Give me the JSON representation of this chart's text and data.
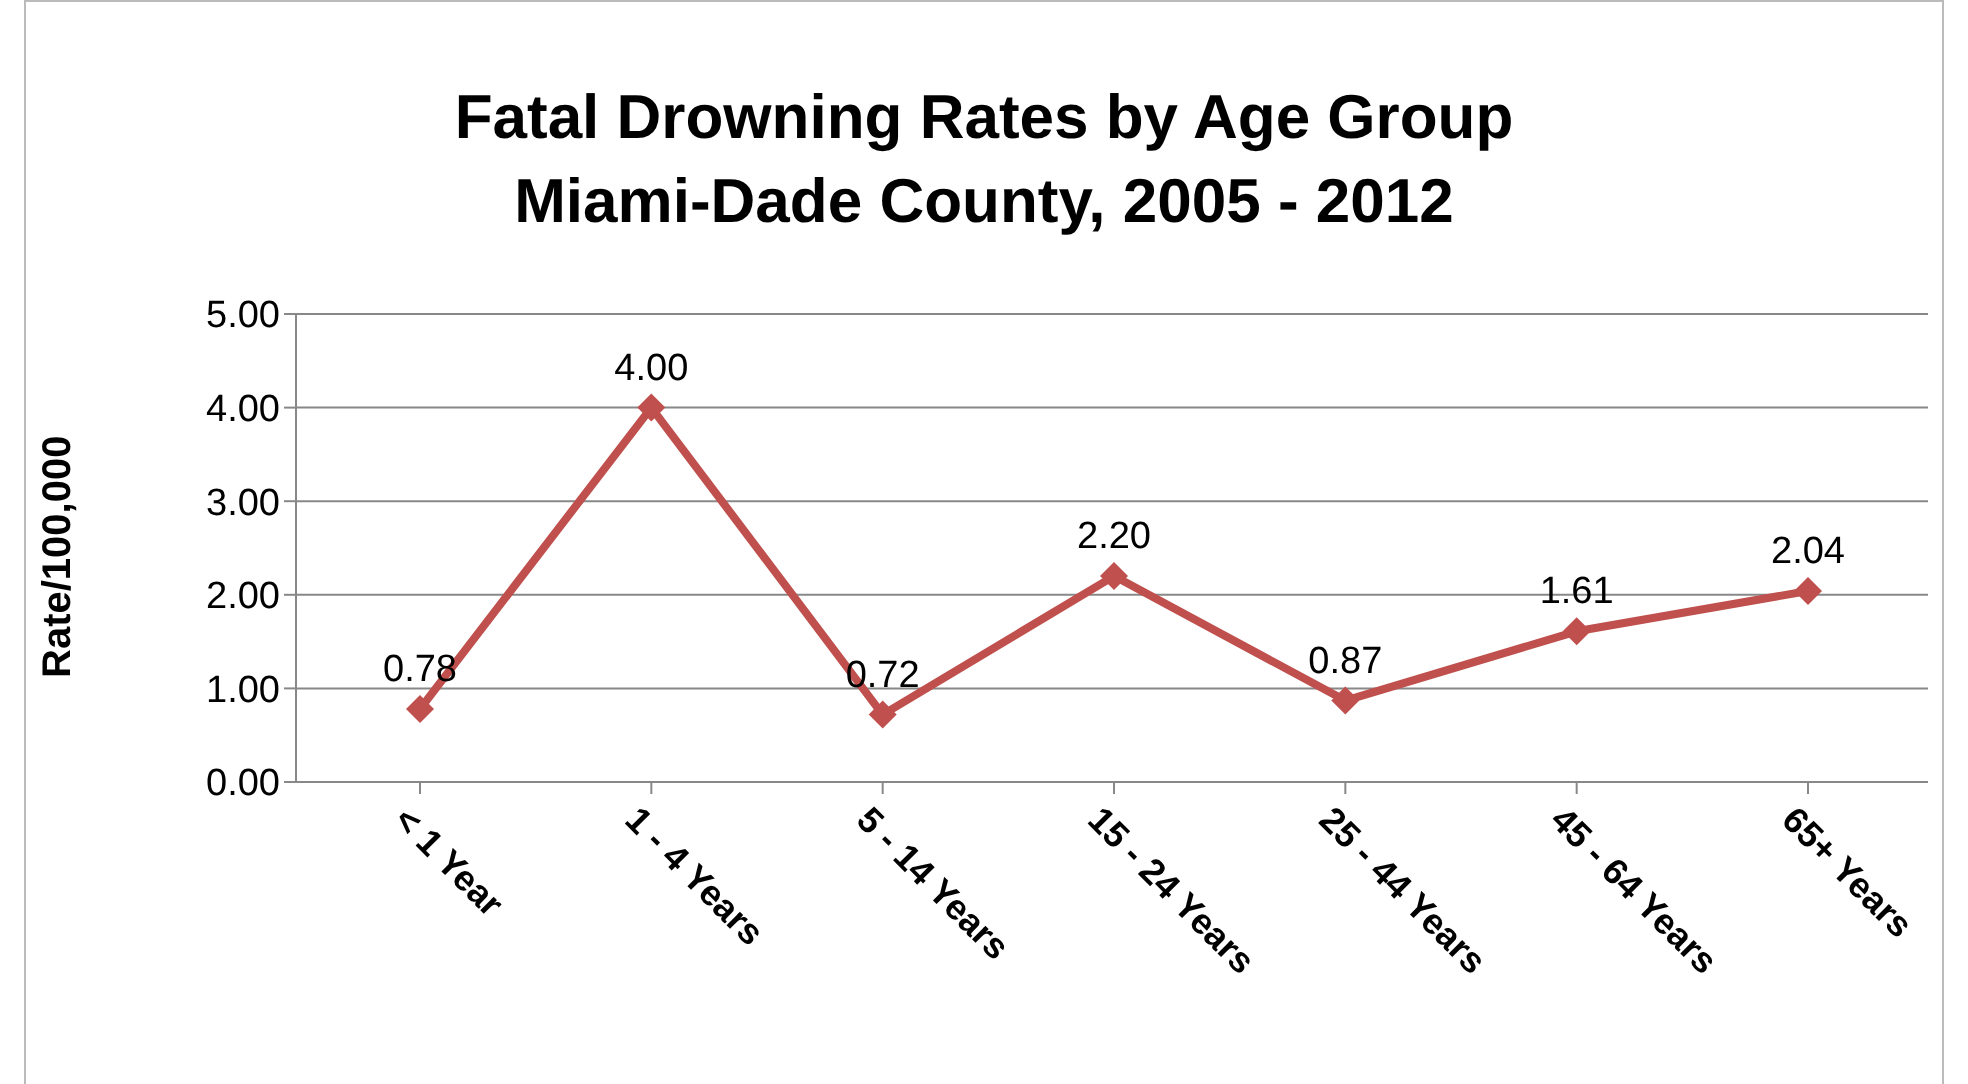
{
  "chart_data": {
    "type": "line",
    "title": "Fatal Drowning Rates by Age Group",
    "subtitle": "Miami-Dade County, 2005 - 2012",
    "ylabel": "Rate/100,000",
    "categories": [
      "< 1 Year",
      "1 - 4 Years",
      "5 - 14 Years",
      "15 - 24 Years",
      "25 - 44 Years",
      "45 - 64 Years",
      "65+ Years"
    ],
    "series": [
      {
        "color": "#c0504d",
        "values": [
          0.78,
          4.0,
          0.72,
          2.2,
          0.87,
          1.61,
          2.04
        ],
        "value_labels": [
          "0.78",
          "4.00",
          "0.72",
          "2.20",
          "0.87",
          "1.61",
          "2.04"
        ]
      }
    ],
    "ylim": [
      0,
      5
    ],
    "yticks": [
      {
        "value": 0,
        "label": "0.00"
      },
      {
        "value": 1,
        "label": "1.00"
      },
      {
        "value": 2,
        "label": "2.00"
      },
      {
        "value": 3,
        "label": "3.00"
      },
      {
        "value": 4,
        "label": "4.00"
      },
      {
        "value": 5,
        "label": "5.00"
      }
    ],
    "grid": "y",
    "marker": "diamond",
    "line_style": "solid"
  }
}
